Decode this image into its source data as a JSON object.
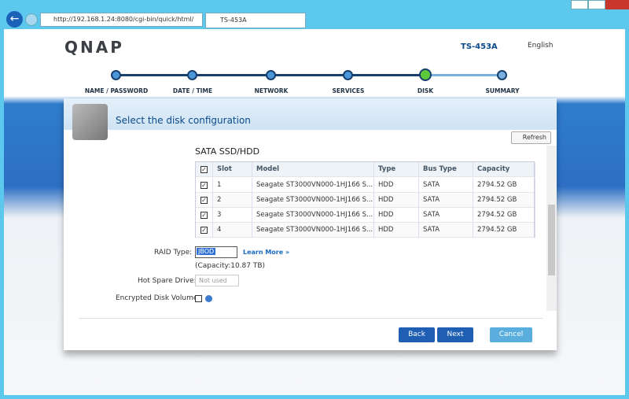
{
  "browser": {
    "url": "http://192.168.1.24:8080/cgi-bin/quick/html/",
    "tab": "TS-453A"
  },
  "header": {
    "logo": "QNAP",
    "model": "TS-453A",
    "language": "English"
  },
  "steps": [
    "NAME / PASSWORD",
    "DATE / TIME",
    "NETWORK",
    "SERVICES",
    "DISK",
    "SUMMARY"
  ],
  "dialog": {
    "title": "Select the disk configuration",
    "refresh": "Refresh",
    "section": "SATA SSD/HDD",
    "table": {
      "columns": [
        "Slot",
        "Model",
        "Type",
        "Bus Type",
        "Capacity"
      ],
      "rows": [
        [
          "1",
          "Seagate ST3000VN000-1HJ166 S...",
          "HDD",
          "SATA",
          "2794.52 GB"
        ],
        [
          "2",
          "Seagate ST3000VN000-1HJ166 S...",
          "HDD",
          "SATA",
          "2794.52 GB"
        ],
        [
          "3",
          "Seagate ST3000VN000-1HJ166 S...",
          "HDD",
          "SATA",
          "2794.52 GB"
        ],
        [
          "4",
          "Seagate ST3000VN000-1HJ166 S...",
          "HDD",
          "SATA",
          "2794.52 GB"
        ]
      ]
    },
    "raid_label": "RAID Type:",
    "raid_value": "JBOD",
    "learn_more": "Learn More »",
    "capacity": "(Capacity:10.87 TB)",
    "spare_label": "Hot Spare Drive:",
    "spare_value": "Not used",
    "encrypt_label": "Encrypted Disk Volume:",
    "buttons": [
      "Back",
      "Next",
      "Cancel"
    ]
  }
}
